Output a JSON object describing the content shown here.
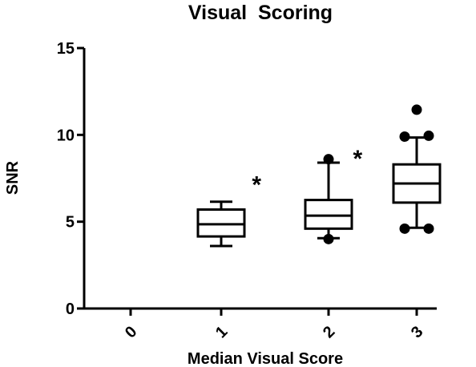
{
  "chart_data": {
    "type": "box",
    "title": "Visual  Scoring",
    "xlabel": "Median Visual Score",
    "ylabel": "SNR",
    "ylim": [
      0,
      15
    ],
    "yticks": [
      "0",
      "5",
      "10",
      "15"
    ],
    "categories": [
      "0",
      "1",
      "2",
      "3"
    ],
    "boxes": [
      {
        "category": "1",
        "whisker_low": 3.6,
        "q1": 4.15,
        "median": 4.85,
        "q3": 5.7,
        "whisker_high": 6.15,
        "outliers": []
      },
      {
        "category": "2",
        "whisker_low": 4.05,
        "q1": 4.6,
        "median": 5.35,
        "q3": 6.25,
        "whisker_high": 8.4,
        "outliers": [
          4.0,
          8.6
        ]
      },
      {
        "category": "3",
        "whisker_low": 4.65,
        "q1": 6.1,
        "median": 7.2,
        "q3": 8.3,
        "whisker_high": 9.85,
        "outliers": [
          4.6,
          4.6,
          9.9,
          9.95,
          11.45
        ]
      }
    ],
    "annotations": [
      {
        "text": "*",
        "between": [
          "1",
          "2"
        ],
        "y": 7.5
      },
      {
        "text": "*",
        "between": [
          "2",
          "3"
        ],
        "y": 9.0
      }
    ],
    "grid": false,
    "legend": "none"
  }
}
